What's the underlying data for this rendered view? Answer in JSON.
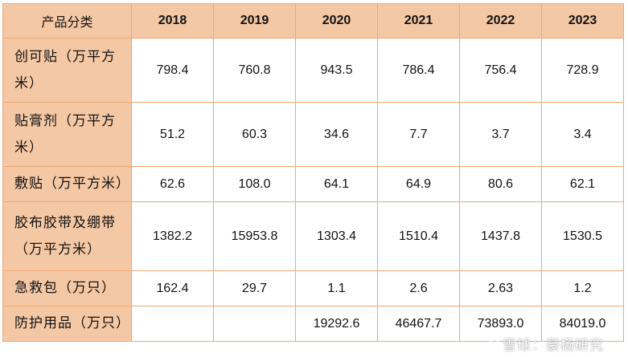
{
  "table": {
    "header_label": "产品分类",
    "years": [
      "2018",
      "2019",
      "2020",
      "2021",
      "2022",
      "2023"
    ],
    "rows": [
      {
        "label": "创可贴（万平方米）",
        "values": [
          "798.4",
          "760.8",
          "943.5",
          "786.4",
          "756.4",
          "728.9"
        ]
      },
      {
        "label": "贴膏剂（万平方米）",
        "values": [
          "51.2",
          "60.3",
          "34.6",
          "7.7",
          "3.7",
          "3.4"
        ]
      },
      {
        "label": "敷贴（万平方米）",
        "values": [
          "62.6",
          "108.0",
          "64.1",
          "64.9",
          "80.6",
          "62.1"
        ]
      },
      {
        "label": "胶布胶带及绷带（万平方米）",
        "values": [
          "1382.2",
          "15953.8",
          "1303.4",
          "1510.4",
          "1437.8",
          "1530.5"
        ]
      },
      {
        "label": "急救包（万只）",
        "values": [
          "162.4",
          "29.7",
          "1.1",
          "2.6",
          "2.63",
          "1.2"
        ]
      },
      {
        "label": "防护用品（万只）",
        "values": [
          "",
          "",
          "19292.6",
          "46467.7",
          "73893.0",
          "84019.0"
        ]
      }
    ]
  },
  "watermark": "雪球：豪杨研究",
  "colors": {
    "header_fill": "#f5c8a5",
    "border": "#f0a772"
  }
}
